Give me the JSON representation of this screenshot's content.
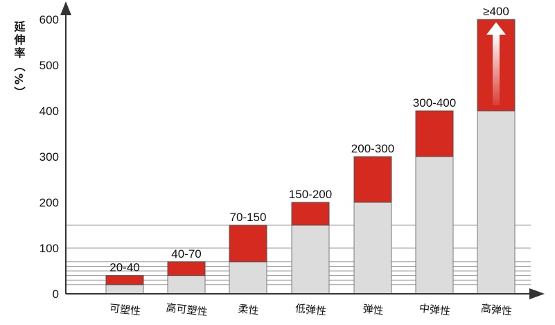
{
  "chart_data": {
    "type": "bar",
    "title": "",
    "ylabel": "延伸率（%）",
    "xlabel": "",
    "ylim": [
      0,
      600
    ],
    "y_ticks": [
      "0",
      "100",
      "200",
      "300",
      "400",
      "500",
      "600"
    ],
    "categories": [
      "可塑性",
      "高可塑性",
      "柔性",
      "低弹性",
      "弹性",
      "中弹性",
      "高弹性"
    ],
    "range_labels": [
      "20-40",
      "40-70",
      "70-150",
      "150-200",
      "200-300",
      "300-400",
      "≥400"
    ],
    "series": [
      {
        "values": [
          20,
          40,
          70,
          150,
          200,
          300,
          400
        ]
      },
      {
        "values": [
          40,
          70,
          150,
          200,
          300,
          400,
          600
        ]
      }
    ],
    "gridlines": [
      20,
      30,
      40,
      50,
      60,
      70,
      100,
      150
    ],
    "grid": true,
    "colors": {
      "lower": "#dcdcdc",
      "upper": "#d42a1f",
      "grid": "#9a9a9a",
      "axis": "#333333"
    },
    "last_bar_arrow": true
  }
}
